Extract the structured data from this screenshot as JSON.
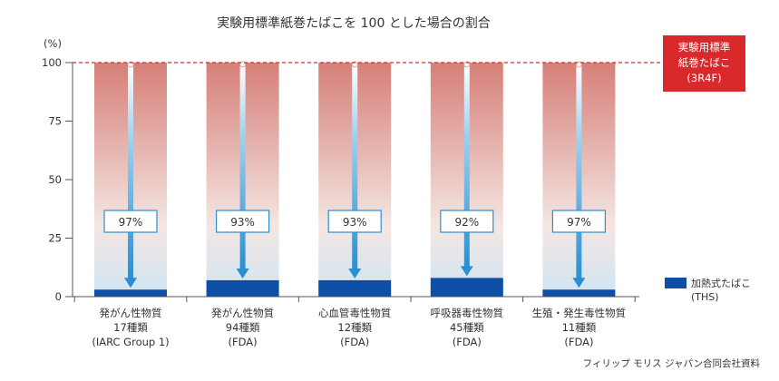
{
  "chart_data": {
    "type": "bar",
    "title": "実験用標準紙巻たばこを 100 とした場合の割合",
    "y_unit_label": "(%)",
    "ylim": [
      0,
      100
    ],
    "yticks": [
      0,
      25,
      50,
      75,
      100
    ],
    "categories": [
      [
        "発がん性物質",
        "17種類",
        "(IARC Group 1)"
      ],
      [
        "発がん性物質",
        "94種類",
        "(FDA)"
      ],
      [
        "心血管毒性物質",
        "12種類",
        "(FDA)"
      ],
      [
        "呼吸器毒性物質",
        "45種類",
        "(FDA)"
      ],
      [
        "生殖・発生毒性物質",
        "11種類",
        "(FDA)"
      ]
    ],
    "reference": {
      "value": 100,
      "label_lines": [
        "実験用標準",
        "紙巻たばこ",
        "(3R4F)"
      ],
      "color": "#d9292b"
    },
    "series": [
      {
        "name_lines": [
          "加熱式たばこ",
          "(THS)"
        ],
        "values": [
          3,
          7,
          7,
          8,
          3
        ],
        "color": "#0d4ea6"
      }
    ],
    "reductions": [
      "97%",
      "93%",
      "93%",
      "92%",
      "97%"
    ],
    "gradient_colors": {
      "top": "#d67f78",
      "mid": "#f4e6e2",
      "bottom": "#cfe5f3"
    },
    "arrow_color": "#2a8fd0",
    "legend_position": "right",
    "grid": false
  },
  "source": "フィリップ モリス ジャパン合同会社資料"
}
